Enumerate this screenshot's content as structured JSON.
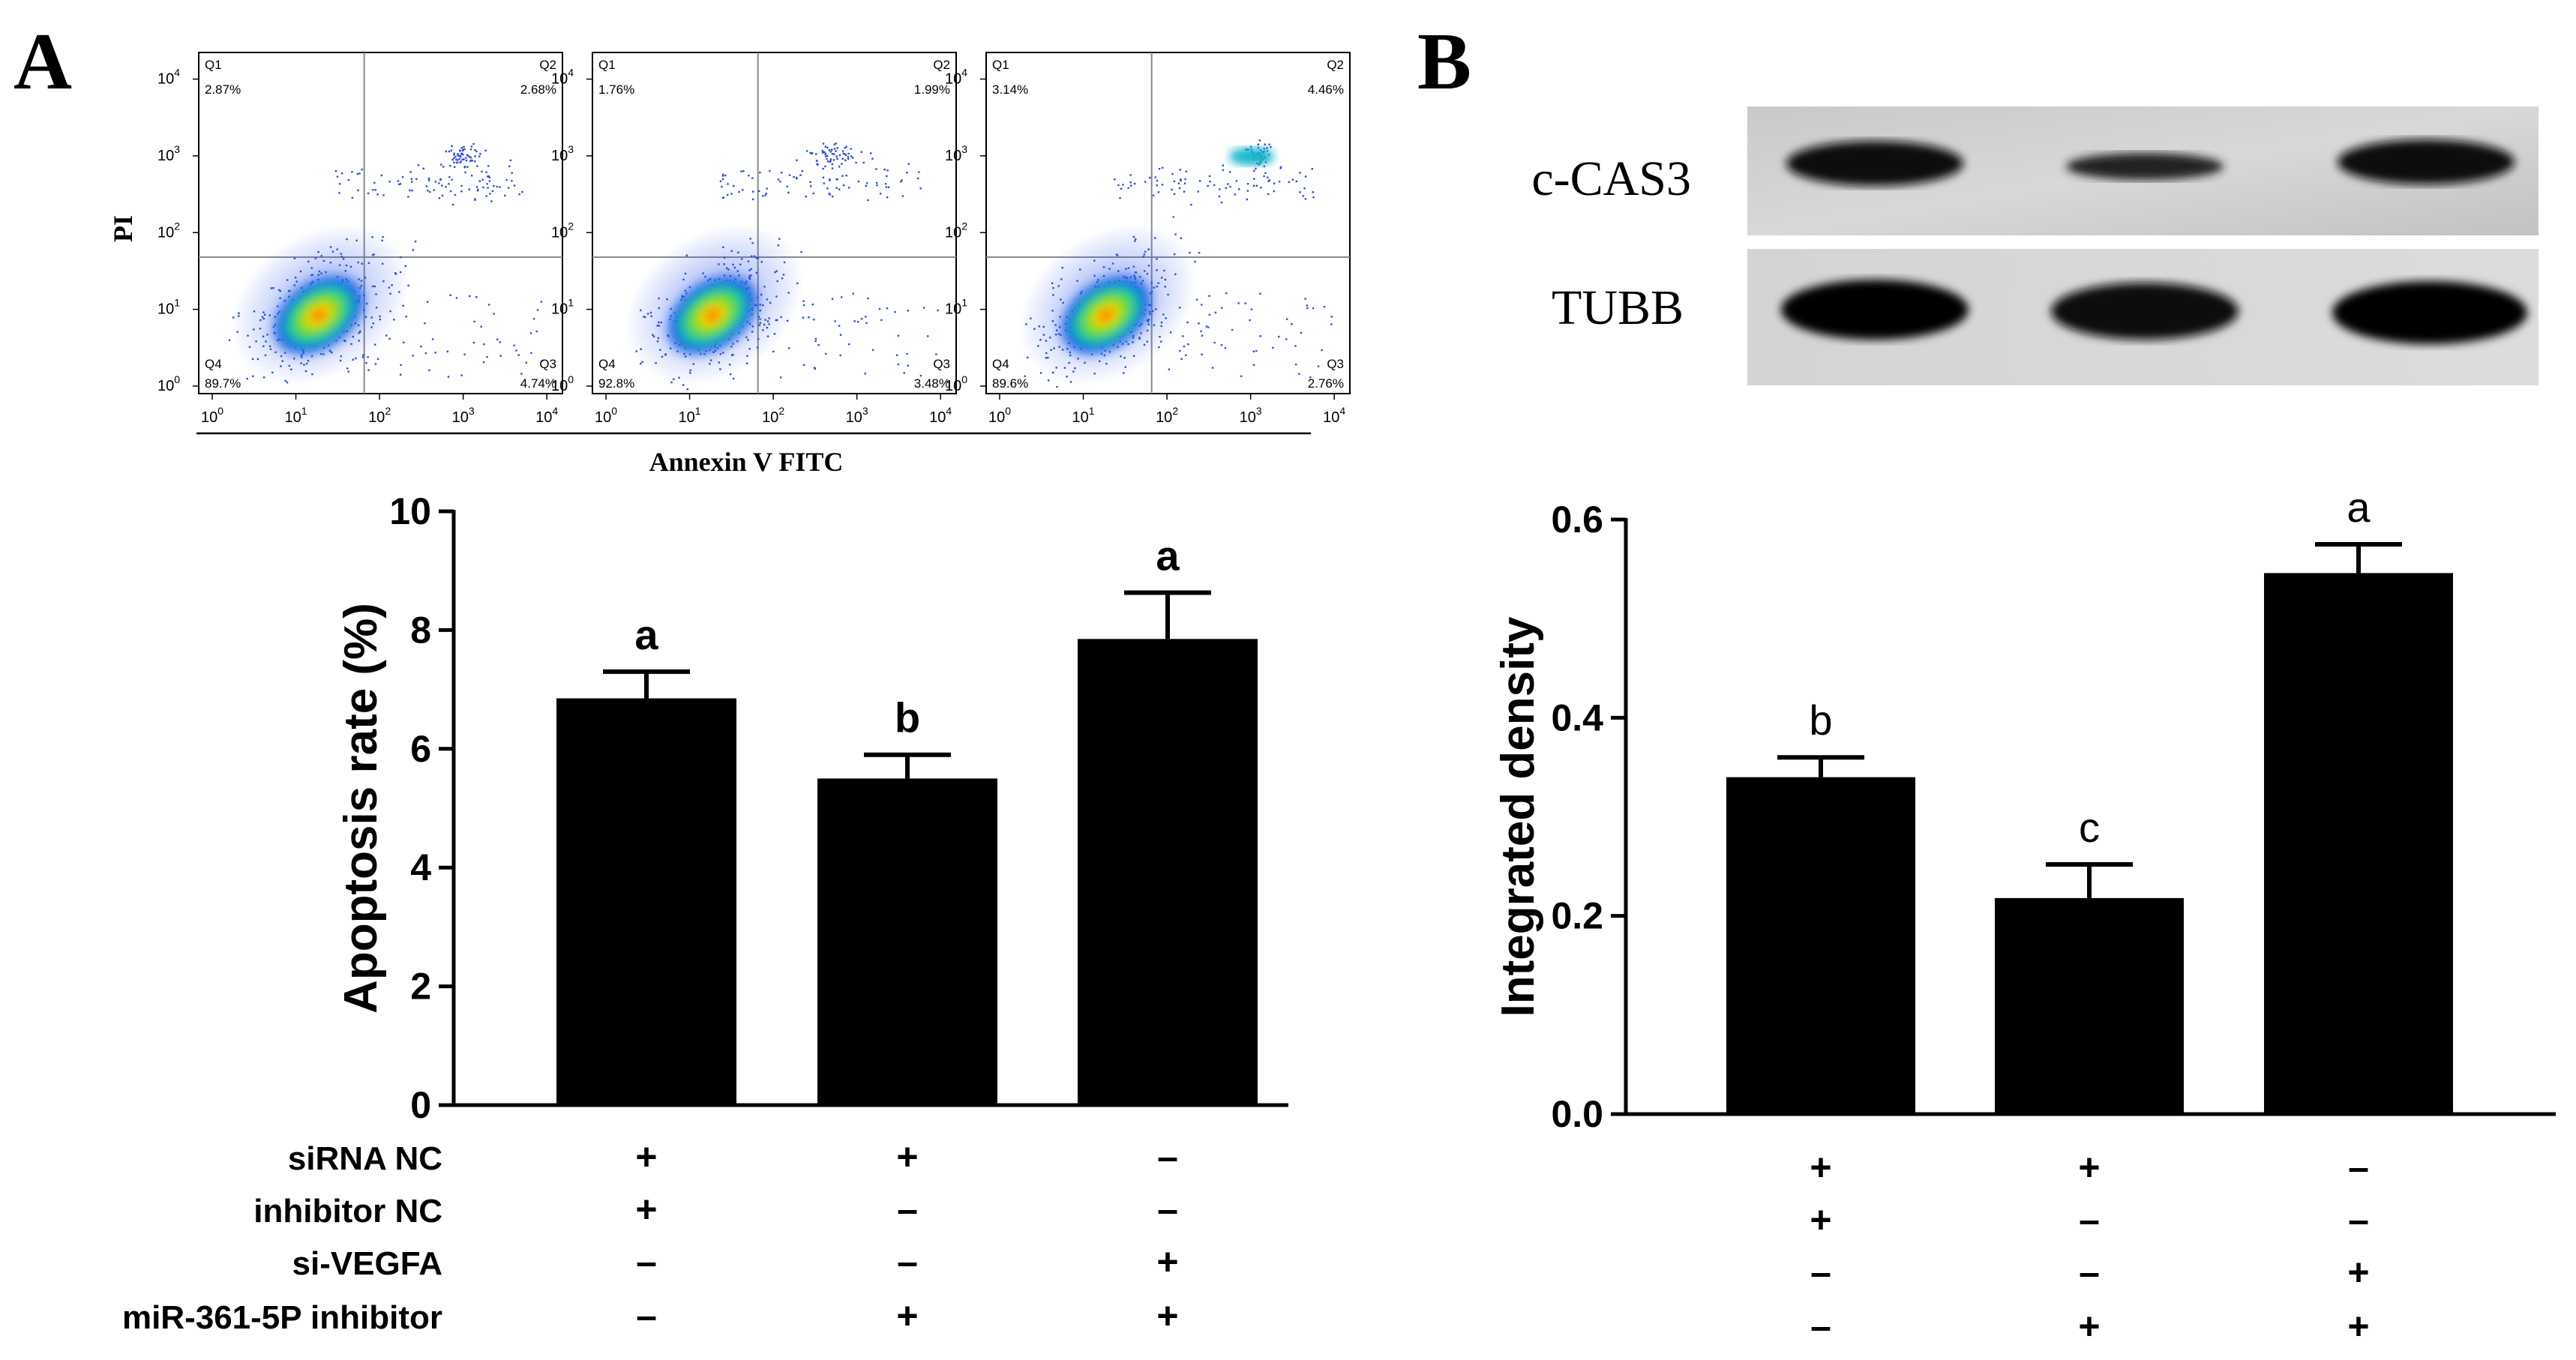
{
  "panels": {
    "A": "A",
    "B": "B"
  },
  "flow": {
    "y_axis_label": "PI",
    "x_axis_label": "Annexin V FITC",
    "tick_exponents": [
      "0",
      "1",
      "2",
      "3",
      "4"
    ],
    "plots": [
      {
        "q1_name": "Q1",
        "q1": "2.87%",
        "q2_name": "Q2",
        "q2": "2.68%",
        "q3_name": "Q3",
        "q3": "4.74%",
        "q4_name": "Q4",
        "q4": "89.7%"
      },
      {
        "q1_name": "Q1",
        "q1": "1.76%",
        "q2_name": "Q2",
        "q2": "1.99%",
        "q3_name": "Q3",
        "q3": "3.48%",
        "q4_name": "Q4",
        "q4": "92.8%"
      },
      {
        "q1_name": "Q1",
        "q1": "3.14%",
        "q2_name": "Q2",
        "q2": "4.46%",
        "q3_name": "Q3",
        "q3": "2.76%",
        "q4_name": "Q4",
        "q4": "89.6%"
      }
    ]
  },
  "western": {
    "bands": [
      "c-CAS3",
      "TUBB"
    ]
  },
  "treatments": {
    "labels": [
      "siRNA NC",
      "inhibitor NC",
      "si-VEGFA",
      "miR-361-5P inhibitor"
    ],
    "signs": [
      [
        "+",
        "+",
        "–"
      ],
      [
        "+",
        "–",
        "–"
      ],
      [
        "–",
        "–",
        "+"
      ],
      [
        "–",
        "+",
        "+"
      ]
    ]
  },
  "chart_data": [
    {
      "type": "bar",
      "panel": "A",
      "ylabel": "Apoptosis rate (%)",
      "ylim": [
        0,
        10
      ],
      "yticks": [
        "0",
        "2",
        "4",
        "6",
        "8",
        "10"
      ],
      "values": [
        6.85,
        5.5,
        7.85
      ],
      "errors": [
        0.45,
        0.4,
        0.78
      ],
      "letters": [
        "a",
        "b",
        "a"
      ],
      "color": "#000000"
    },
    {
      "type": "bar",
      "panel": "B",
      "ylabel": "Integrated density",
      "ylim": [
        0,
        0.6
      ],
      "yticks": [
        "0.0",
        "0.2",
        "0.4",
        "0.6"
      ],
      "values": [
        0.34,
        0.218,
        0.546
      ],
      "errors": [
        0.02,
        0.034,
        0.029
      ],
      "letters": [
        "b",
        "c",
        "a"
      ],
      "color": "#000000"
    }
  ]
}
